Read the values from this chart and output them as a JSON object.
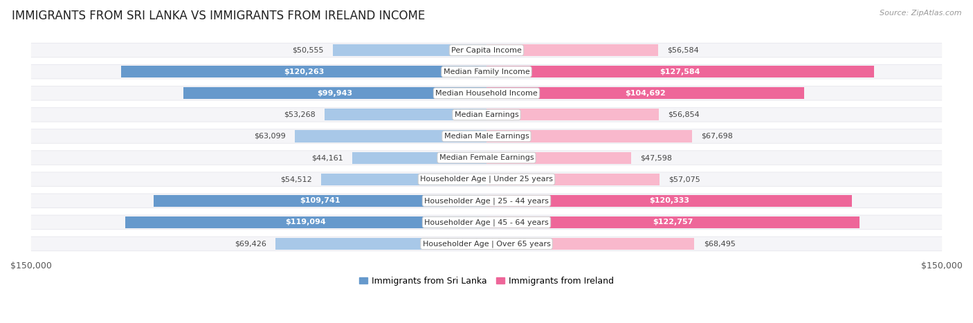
{
  "title": "IMMIGRANTS FROM SRI LANKA VS IMMIGRANTS FROM IRELAND INCOME",
  "source": "Source: ZipAtlas.com",
  "categories": [
    "Per Capita Income",
    "Median Family Income",
    "Median Household Income",
    "Median Earnings",
    "Median Male Earnings",
    "Median Female Earnings",
    "Householder Age | Under 25 years",
    "Householder Age | 25 - 44 years",
    "Householder Age | 45 - 64 years",
    "Householder Age | Over 65 years"
  ],
  "sri_lanka_values": [
    50555,
    120263,
    99943,
    53268,
    63099,
    44161,
    54512,
    109741,
    119094,
    69426
  ],
  "ireland_values": [
    56584,
    127584,
    104692,
    56854,
    67698,
    47598,
    57075,
    120333,
    122757,
    68495
  ],
  "sri_lanka_labels": [
    "$50,555",
    "$120,263",
    "$99,943",
    "$53,268",
    "$63,099",
    "$44,161",
    "$54,512",
    "$109,741",
    "$119,094",
    "$69,426"
  ],
  "ireland_labels": [
    "$56,584",
    "$127,584",
    "$104,692",
    "$56,854",
    "$67,698",
    "$47,598",
    "$57,075",
    "$120,333",
    "$122,757",
    "$68,495"
  ],
  "max_val": 150000,
  "sri_lanka_color_light": "#a8c8e8",
  "sri_lanka_color_dark": "#6699cc",
  "ireland_color_light": "#f9b8cc",
  "ireland_color_dark": "#ee6699",
  "row_bg_color": "#e8e8ee",
  "row_inner_color": "#f5f5f8",
  "legend_sri_lanka": "Immigrants from Sri Lanka",
  "legend_ireland": "Immigrants from Ireland",
  "title_fontsize": 12,
  "source_fontsize": 8,
  "axis_label_fontsize": 9,
  "bar_label_fontsize": 8,
  "cat_label_fontsize": 8,
  "inside_label_threshold": 80000
}
